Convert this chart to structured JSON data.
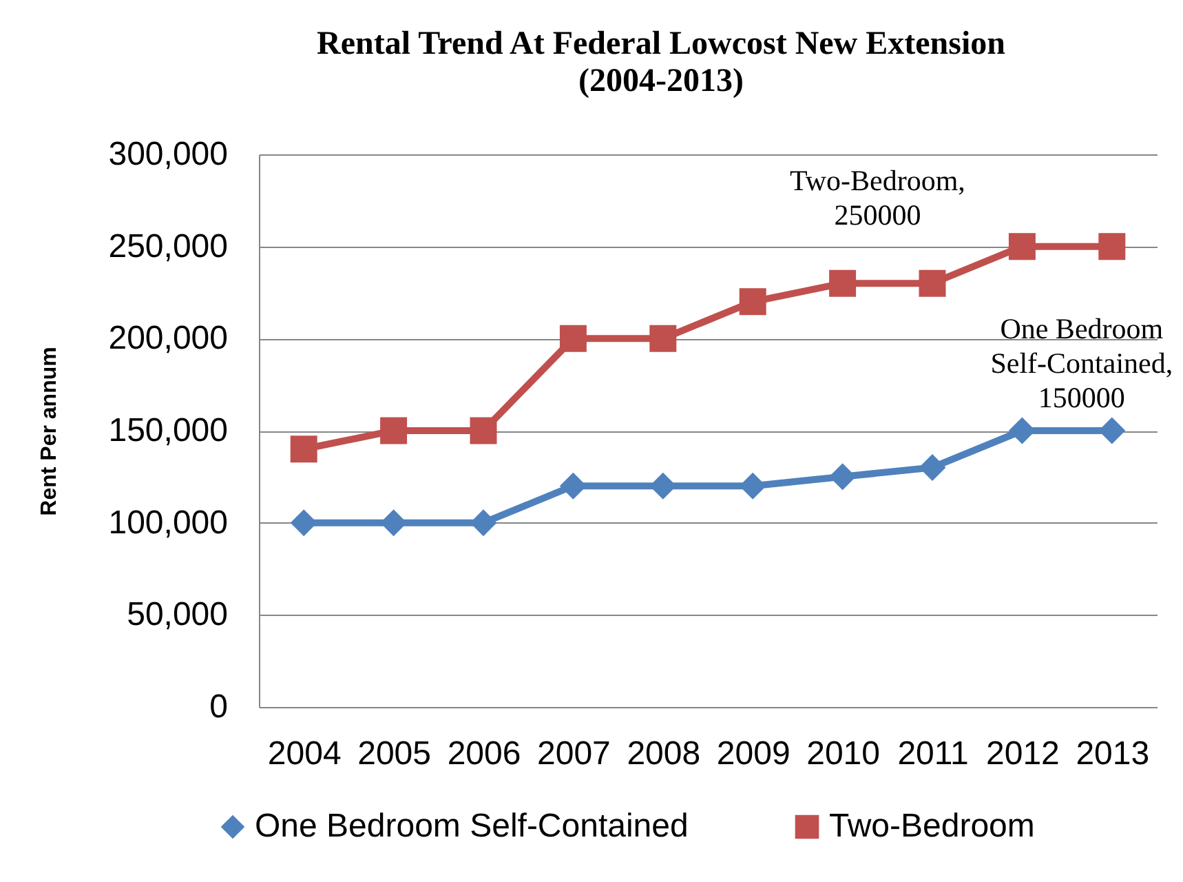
{
  "chart_data": {
    "type": "line",
    "title": "Rental Trend At Federal Lowcost New Extension (2004-2013)",
    "ylabel": "Rent Per annum",
    "categories": [
      "2004",
      "2005",
      "2006",
      "2007",
      "2008",
      "2009",
      "2010",
      "2011",
      "2012",
      "2013"
    ],
    "series": [
      {
        "name": "One Bedroom Self-Contained",
        "color": "#4f81bd",
        "marker": "diamond",
        "values": [
          100000,
          100000,
          100000,
          120000,
          120000,
          120000,
          125000,
          130000,
          150000,
          150000
        ]
      },
      {
        "name": "Two-Bedroom",
        "color": "#c0504d",
        "marker": "square",
        "values": [
          140000,
          150000,
          150000,
          200000,
          200000,
          220000,
          230000,
          230000,
          250000,
          250000
        ]
      }
    ],
    "ylim": [
      0,
      300000
    ],
    "yticks": [
      0,
      {
        "value": 50000,
        "label": "50,000"
      },
      {
        "value": 100000,
        "label": "100,000"
      },
      {
        "value": 150000,
        "label": "150,000"
      },
      {
        "value": 200000,
        "label": "200,000"
      },
      {
        "value": 250000,
        "label": "250,000"
      },
      {
        "value": 300000,
        "label": "300,000"
      }
    ],
    "grid": "y",
    "legend": "bottom",
    "annotations": [
      {
        "text": "Two-Bedroom, 250000",
        "x": "2012",
        "y": 250000
      },
      {
        "text": "One Bedroom Self-Contained, 150000",
        "x": "2013",
        "y": 150000
      }
    ]
  }
}
